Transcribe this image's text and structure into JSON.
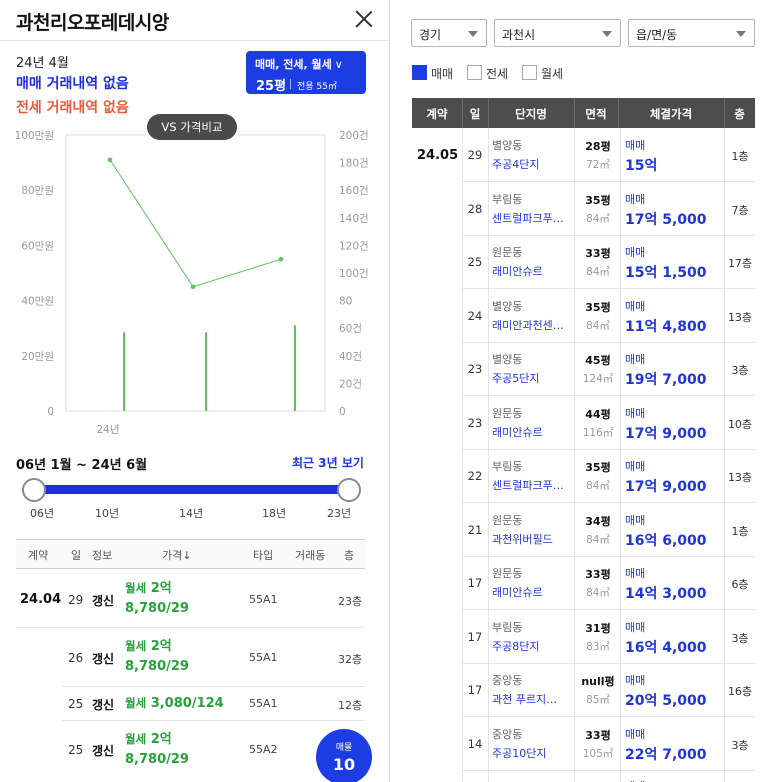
{
  "left": {
    "title": "과천리오포레데시앙",
    "year_month": "24년 4월",
    "no_sale": "매매 거래내역 없음",
    "no_jeonse": "전세 거래내역 없음",
    "filter": {
      "types": "매매, 전세, 월세",
      "chevron": "∨",
      "pyeong": "25평",
      "exclusive": "전용 55㎡"
    },
    "vs_badge": "VS 가격비교",
    "range_label": "06년 1월 ~ 24년 6월",
    "recent_link": "최근 3년 보기",
    "slider_labels": [
      "06년",
      "10년",
      "14년",
      "18년",
      "23년"
    ],
    "table_headers": [
      "계약",
      "일",
      "정보",
      "가격↓",
      "타입",
      "거래동",
      "층"
    ],
    "year_label": "24.04",
    "rows": [
      {
        "day": "29",
        "info": "갱신",
        "kind": "월세",
        "amount1": "2억",
        "amount2": "8,780/29",
        "type": "55A1",
        "floor": "23층"
      },
      {
        "day": "26",
        "info": "갱신",
        "kind": "월세",
        "amount1": "2억",
        "amount2": "8,780/29",
        "type": "55A1",
        "floor": "32층"
      },
      {
        "day": "25",
        "info": "갱신",
        "kind": "월세",
        "amount1": "3,080/124",
        "amount2": "",
        "type": "55A1",
        "floor": "12층"
      },
      {
        "day": "25",
        "info": "갱신",
        "kind": "월세",
        "amount1": "2억",
        "amount2": "8,780/29",
        "type": "55A2",
        "floor": ""
      }
    ],
    "fab": {
      "label": "매물",
      "count": "10"
    }
  },
  "chart_data": {
    "type": "line",
    "x_label": "24년",
    "y_left_ticks": [
      "100만원",
      "80만원",
      "60만원",
      "40만원",
      "20만원",
      "0"
    ],
    "y_right_ticks": [
      "200건",
      "180건",
      "160건",
      "140건",
      "120건",
      "100건",
      "80",
      "60건",
      "40건",
      "20건",
      "0"
    ],
    "ylim_left": [
      0,
      100
    ],
    "ylim_right": [
      0,
      200
    ],
    "series": [
      {
        "kind": "line",
        "values": [
          91,
          45,
          55
        ]
      },
      {
        "kind": "bar",
        "values": [
          57,
          57,
          62
        ]
      }
    ],
    "color": "#5cc35c"
  },
  "right": {
    "selects": [
      "경기",
      "과천시",
      "읍/면/동"
    ],
    "checks": [
      {
        "label": "매매",
        "checked": true
      },
      {
        "label": "전세",
        "checked": false
      },
      {
        "label": "월세",
        "checked": false
      }
    ],
    "headers": [
      "계약",
      "일",
      "단지명",
      "면적",
      "체결가격",
      "층"
    ],
    "year_label": "24.05",
    "rows": [
      {
        "day": "29",
        "dong": "별양동",
        "apt": "주공4단지",
        "py": "28평",
        "m2": "72㎡",
        "kind": "매매",
        "price": "15억",
        "floor": "1층"
      },
      {
        "day": "28",
        "dong": "부림동",
        "apt": "센트럴파크푸…",
        "py": "35평",
        "m2": "84㎡",
        "kind": "매매",
        "price": "17억 5,000",
        "floor": "7층"
      },
      {
        "day": "25",
        "dong": "원문동",
        "apt": "래미안슈르",
        "py": "33평",
        "m2": "84㎡",
        "kind": "매매",
        "price": "15억 1,500",
        "floor": "17층"
      },
      {
        "day": "24",
        "dong": "별양동",
        "apt": "래미안과천센…",
        "py": "35평",
        "m2": "84㎡",
        "kind": "매매",
        "price": "11억 4,800",
        "floor": "13층"
      },
      {
        "day": "23",
        "dong": "별양동",
        "apt": "주공5단지",
        "py": "45평",
        "m2": "124㎡",
        "kind": "매매",
        "price": "19억 7,000",
        "floor": "3층"
      },
      {
        "day": "23",
        "dong": "원문동",
        "apt": "래미안슈르",
        "py": "44평",
        "m2": "116㎡",
        "kind": "매매",
        "price": "17억 9,000",
        "floor": "10층"
      },
      {
        "day": "22",
        "dong": "부림동",
        "apt": "센트럴파크푸…",
        "py": "35평",
        "m2": "84㎡",
        "kind": "매매",
        "price": "17억 9,000",
        "floor": "13층"
      },
      {
        "day": "21",
        "dong": "원문동",
        "apt": "과천위버필드",
        "py": "34평",
        "m2": "84㎡",
        "kind": "매매",
        "price": "16억 6,000",
        "floor": "1층"
      },
      {
        "day": "17",
        "dong": "원문동",
        "apt": "래미안슈르",
        "py": "33평",
        "m2": "84㎡",
        "kind": "매매",
        "price": "14억 3,000",
        "floor": "6층"
      },
      {
        "day": "17",
        "dong": "부림동",
        "apt": "주공8단지",
        "py": "31평",
        "m2": "83㎡",
        "kind": "매매",
        "price": "16억 4,000",
        "floor": "3층"
      },
      {
        "day": "17",
        "dong": "중앙동",
        "apt": "과천 푸르지…",
        "py": "null평",
        "m2": "85㎡",
        "kind": "매매",
        "price": "20억 5,000",
        "floor": "16층"
      },
      {
        "day": "14",
        "dong": "중앙동",
        "apt": "주공10단지",
        "py": "33평",
        "m2": "105㎡",
        "kind": "매매",
        "price": "22억 7,000",
        "floor": "3층"
      }
    ],
    "partial_row": {
      "kind": "매매"
    }
  }
}
